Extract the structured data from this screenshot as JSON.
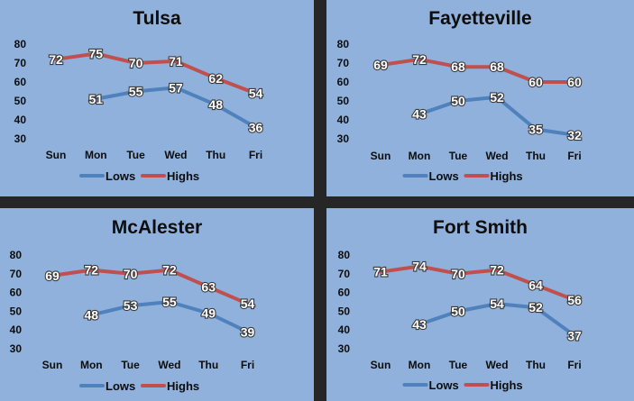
{
  "colors": {
    "lows": "#4f81bd",
    "highs": "#c0504d",
    "panel_bg": "#8fb1dc",
    "divider": "#262626"
  },
  "chart_data": [
    {
      "type": "line",
      "title": "Tulsa",
      "categories": [
        "Sun",
        "Mon",
        "Tue",
        "Wed",
        "Thu",
        "Fri"
      ],
      "ylim": [
        30,
        80
      ],
      "yticks": [
        80,
        70,
        60,
        50,
        40,
        30
      ],
      "series": [
        {
          "name": "Lows",
          "values": [
            null,
            51,
            55,
            57,
            48,
            36
          ]
        },
        {
          "name": "Highs",
          "values": [
            72,
            75,
            70,
            71,
            62,
            54
          ]
        }
      ],
      "legend": "bottom"
    },
    {
      "type": "line",
      "title": "Fayetteville",
      "categories": [
        "Sun",
        "Mon",
        "Tue",
        "Wed",
        "Thu",
        "Fri"
      ],
      "ylim": [
        30,
        80
      ],
      "yticks": [
        80,
        70,
        60,
        50,
        40,
        30
      ],
      "series": [
        {
          "name": "Lows",
          "values": [
            null,
            43,
            50,
            52,
            35,
            32
          ]
        },
        {
          "name": "Highs",
          "values": [
            69,
            72,
            68,
            68,
            60,
            60
          ]
        }
      ],
      "legend": "bottom"
    },
    {
      "type": "line",
      "title": "McAlester",
      "categories": [
        "Sun",
        "Mon",
        "Tue",
        "Wed",
        "Thu",
        "Fri"
      ],
      "ylim": [
        30,
        80
      ],
      "yticks": [
        80,
        70,
        60,
        50,
        40,
        30
      ],
      "series": [
        {
          "name": "Lows",
          "values": [
            null,
            48,
            53,
            55,
            49,
            39
          ]
        },
        {
          "name": "Highs",
          "values": [
            69,
            72,
            70,
            72,
            63,
            54
          ]
        }
      ],
      "legend": "bottom"
    },
    {
      "type": "line",
      "title": "Fort Smith",
      "categories": [
        "Sun",
        "Mon",
        "Tue",
        "Wed",
        "Thu",
        "Fri"
      ],
      "ylim": [
        30,
        80
      ],
      "yticks": [
        80,
        70,
        60,
        50,
        40,
        30
      ],
      "series": [
        {
          "name": "Lows",
          "values": [
            null,
            43,
            50,
            54,
            52,
            37
          ]
        },
        {
          "name": "Highs",
          "values": [
            71,
            74,
            70,
            72,
            64,
            56
          ]
        }
      ],
      "legend": "bottom"
    }
  ]
}
